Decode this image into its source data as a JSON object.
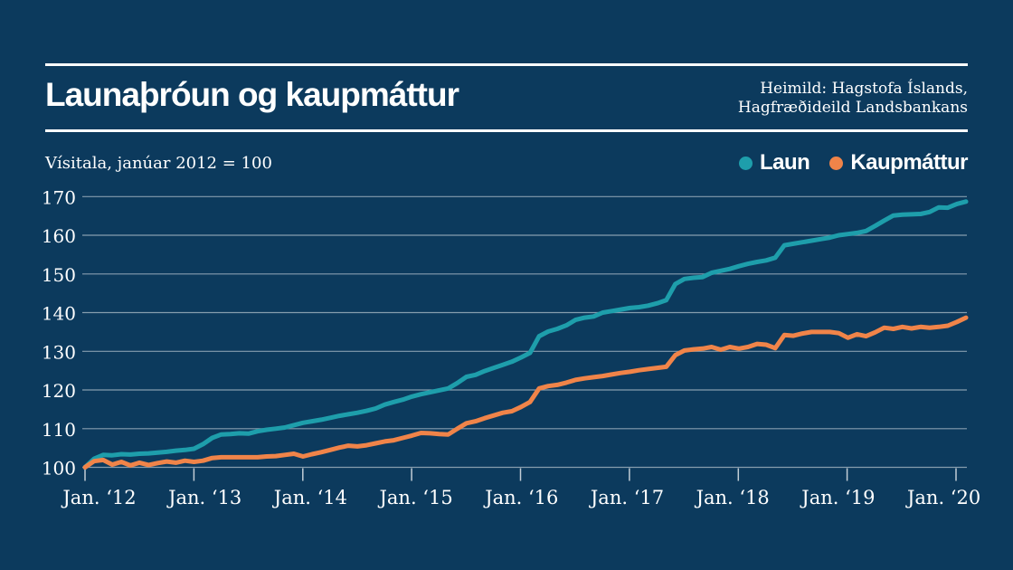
{
  "header": {
    "title": "Launaþróun og kaupmáttur",
    "source_line1": "Heimild: Hagstofa Íslands,",
    "source_line2": "Hagfræðideild Landsbankans"
  },
  "subtitle": "Vísitala, janúar 2012 = 100",
  "legend": {
    "items": [
      {
        "label": "Laun",
        "color": "#1E9EAB"
      },
      {
        "label": "Kaupmáttur",
        "color": "#F08449"
      }
    ]
  },
  "colors": {
    "background": "#0C3A5D",
    "text": "#FFFFFF",
    "laun": "#1E9EAB",
    "kaupmattur": "#F08449"
  },
  "chart_data": {
    "type": "line",
    "title": "Launaþróun og kaupmáttur",
    "subtitle": "Vísitala, janúar 2012 = 100",
    "x_start": "2012-01",
    "x_end": "2020-02",
    "x_frequency": "monthly",
    "xtick_labels": [
      "Jan. ‘12",
      "Jan. ‘13",
      "Jan. ‘14",
      "Jan. ‘15",
      "Jan. ‘16",
      "Jan. ‘17",
      "Jan. ‘18",
      "Jan. ‘19",
      "Jan. ‘20"
    ],
    "yticks": [
      100,
      110,
      120,
      130,
      140,
      150,
      160,
      170
    ],
    "ylim": [
      97,
      173
    ],
    "grid": "horizontal",
    "legend_position": "top-right",
    "series": [
      {
        "name": "Laun",
        "color": "#1E9EAB",
        "values": [
          100.0,
          102.2,
          103.2,
          103.1,
          103.4,
          103.3,
          103.5,
          103.6,
          103.8,
          104.0,
          104.3,
          104.5,
          104.8,
          106.0,
          107.6,
          108.5,
          108.6,
          108.8,
          108.7,
          109.3,
          109.7,
          110.0,
          110.3,
          110.9,
          111.5,
          111.9,
          112.3,
          112.8,
          113.3,
          113.7,
          114.1,
          114.6,
          115.2,
          116.2,
          116.9,
          117.5,
          118.3,
          118.9,
          119.4,
          119.9,
          120.4,
          121.8,
          123.4,
          123.9,
          124.9,
          125.7,
          126.5,
          127.3,
          128.4,
          129.6,
          133.9,
          135.1,
          135.8,
          136.7,
          138.1,
          138.7,
          139.0,
          140.0,
          140.4,
          140.8,
          141.2,
          141.4,
          141.8,
          142.4,
          143.2,
          147.4,
          148.7,
          149.0,
          149.2,
          150.3,
          150.8,
          151.3,
          152.0,
          152.6,
          153.1,
          153.5,
          154.2,
          157.4,
          157.8,
          158.2,
          158.6,
          159.0,
          159.4,
          160.0,
          160.3,
          160.6,
          161.1,
          162.4,
          163.8,
          165.1,
          165.3,
          165.4,
          165.5,
          166.0,
          167.2,
          167.1,
          168.1,
          168.7
        ]
      },
      {
        "name": "Kaupmáttur",
        "color": "#F08449",
        "values": [
          100.0,
          101.6,
          101.9,
          100.7,
          101.4,
          100.5,
          101.2,
          100.6,
          101.1,
          101.5,
          101.2,
          101.7,
          101.4,
          101.7,
          102.4,
          102.6,
          102.6,
          102.6,
          102.6,
          102.6,
          102.8,
          102.9,
          103.2,
          103.5,
          102.8,
          103.4,
          103.9,
          104.5,
          105.1,
          105.6,
          105.4,
          105.7,
          106.2,
          106.7,
          107.0,
          107.6,
          108.2,
          108.9,
          108.8,
          108.6,
          108.5,
          110.0,
          111.4,
          111.9,
          112.7,
          113.4,
          114.1,
          114.5,
          115.6,
          116.9,
          120.4,
          121.0,
          121.3,
          121.9,
          122.6,
          123.0,
          123.3,
          123.6,
          124.0,
          124.4,
          124.7,
          125.1,
          125.4,
          125.7,
          126.0,
          129.0,
          130.2,
          130.5,
          130.7,
          131.1,
          130.4,
          131.1,
          130.7,
          131.1,
          131.9,
          131.7,
          130.8,
          134.2,
          134.0,
          134.6,
          135.0,
          135.0,
          135.0,
          134.7,
          133.5,
          134.4,
          133.9,
          134.9,
          136.1,
          135.8,
          136.3,
          135.9,
          136.3,
          136.1,
          136.3,
          136.6,
          137.6,
          138.7
        ]
      }
    ]
  }
}
